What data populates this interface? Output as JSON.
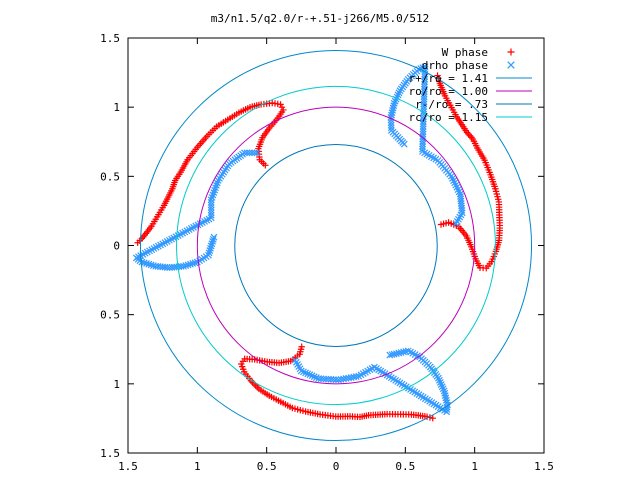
{
  "chart_data": {
    "type": "scatter",
    "title": "m3/n1.5/q2.0/r-+.51-j266/M5.0/512",
    "xlim": [
      -1.5,
      1.5
    ],
    "ylim": [
      -1.5,
      1.5
    ],
    "x_tick_values": [
      -1.5,
      -1,
      -0.5,
      0,
      0.5,
      1,
      1.5
    ],
    "x_tick_labels": [
      "1.5",
      "1",
      "0.5",
      "0",
      "0.5",
      "1",
      "1.5"
    ],
    "y_tick_values": [
      1.5,
      1,
      0.5,
      0,
      -0.5,
      -1,
      -1.5
    ],
    "y_tick_labels": [
      "1.5",
      "1",
      "0.5",
      "0",
      "0.5",
      "1",
      "1.5"
    ],
    "grid": false,
    "legend_position": "top-right",
    "series": [
      {
        "name": "W phase",
        "kind": "points",
        "marker": "plus",
        "color": "#ff0000",
        "symmetry": 3,
        "arm_points": [
          [
            -1.43,
            0.02
          ],
          [
            -1.4,
            0.05
          ],
          [
            -1.36,
            0.1
          ],
          [
            -1.33,
            0.14
          ],
          [
            -1.3,
            0.19
          ],
          [
            -1.27,
            0.24
          ],
          [
            -1.24,
            0.29
          ],
          [
            -1.21,
            0.35
          ],
          [
            -1.18,
            0.41
          ],
          [
            -1.16,
            0.47
          ],
          [
            -1.12,
            0.53
          ],
          [
            -1.07,
            0.62
          ],
          [
            -1.0,
            0.71
          ],
          [
            -0.93,
            0.79
          ],
          [
            -0.86,
            0.86
          ],
          [
            -0.78,
            0.91
          ],
          [
            -0.7,
            0.96
          ],
          [
            -0.62,
            1.0
          ],
          [
            -0.54,
            1.02
          ],
          [
            -0.46,
            1.03
          ],
          [
            -0.4,
            1.02
          ],
          [
            -0.38,
            0.98
          ],
          [
            -0.42,
            0.92
          ],
          [
            -0.48,
            0.85
          ],
          [
            -0.53,
            0.78
          ],
          [
            -0.56,
            0.7
          ],
          [
            -0.55,
            0.62
          ],
          [
            -0.51,
            0.58
          ]
        ]
      },
      {
        "name": "drho phase",
        "kind": "points",
        "marker": "cross",
        "color": "#3399ff",
        "symmetry": 3,
        "arm_points": [
          [
            -0.88,
            0.06
          ],
          [
            -0.89,
            0.03
          ],
          [
            -0.92,
            -0.07
          ],
          [
            -1.0,
            -0.12
          ],
          [
            -1.1,
            -0.15
          ],
          [
            -1.2,
            -0.16
          ],
          [
            -1.3,
            -0.15
          ],
          [
            -1.4,
            -0.12
          ],
          [
            -1.44,
            -0.09
          ],
          [
            -0.9,
            0.2
          ],
          [
            -0.9,
            0.33
          ],
          [
            -0.85,
            0.47
          ],
          [
            -0.77,
            0.59
          ],
          [
            -0.66,
            0.67
          ],
          [
            -0.57,
            0.67
          ]
        ]
      }
    ],
    "circles": [
      {
        "name": "r+/ro = 1.41",
        "radius": 1.41,
        "color": "#0088cc"
      },
      {
        "name": "ro/ro = 1.00",
        "radius": 1.0,
        "color": "#bb00bb"
      },
      {
        "name": "r-/ro = .73",
        "radius": 0.73,
        "color": "#0077bb"
      },
      {
        "name": "rc/ro = 1.15",
        "radius": 1.15,
        "color": "#00cccc"
      }
    ],
    "legend": [
      {
        "label": "W phase",
        "marker": "plus",
        "color": "#ff0000"
      },
      {
        "label": "drho phase",
        "marker": "cross",
        "color": "#3399ff"
      },
      {
        "label": "r+/ro = 1.41",
        "marker": "line",
        "color": "#0088cc"
      },
      {
        "label": "ro/ro = 1.00",
        "marker": "line",
        "color": "#bb00bb"
      },
      {
        "label": "r-/ro = .73",
        "marker": "line",
        "color": "#0077bb"
      },
      {
        "label": "rc/ro = 1.15",
        "marker": "line",
        "color": "#00cccc"
      }
    ]
  }
}
